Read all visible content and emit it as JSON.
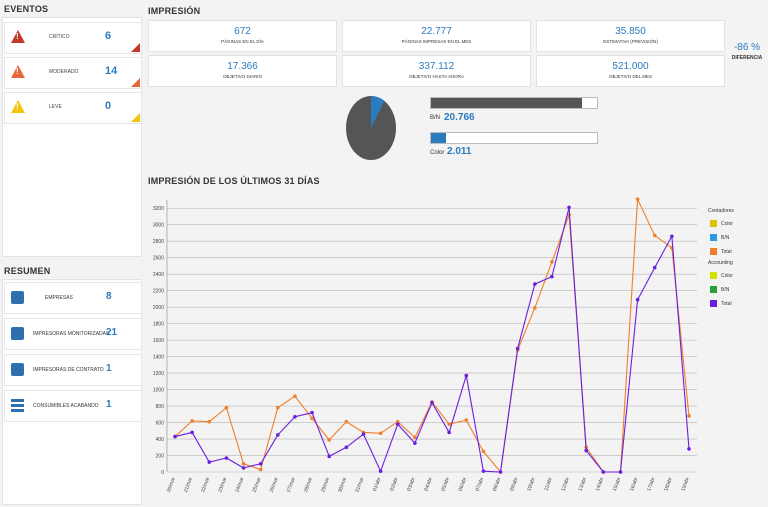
{
  "eventos": {
    "title": "EVENTOS",
    "items": [
      {
        "label": "CRÍTICO",
        "count": "6",
        "color": "#c0392b"
      },
      {
        "label": "MODERADO",
        "count": "14",
        "color": "#e8643c"
      },
      {
        "label": "LEVE",
        "count": "0",
        "color": "#f1c40f"
      }
    ]
  },
  "resumen": {
    "title": "RESUMEN",
    "items": [
      {
        "label": "EMPRESAS",
        "count": "8",
        "icon": "factory-icon"
      },
      {
        "label": "IMPRESORAS MONITORIZADAS",
        "count": "21",
        "icon": "printer-icon"
      },
      {
        "label": "IMPRESORAS DE CONTRATO",
        "count": "1",
        "icon": "contract-printer-icon"
      },
      {
        "label": "CONSUMIBLES ACABANDO",
        "count": "1",
        "icon": "stack-icon"
      }
    ]
  },
  "impresion": {
    "title": "IMPRESIÓN",
    "kpis": [
      {
        "value": "672",
        "label": "PÁGINAS EN EL DÍA"
      },
      {
        "value": "22.777",
        "label": "PÁGINAS IMPRESAS EN EL MES"
      },
      {
        "value": "35.850",
        "label": "ESTIMATIVA (PREVISIÓN)"
      },
      {
        "value": "17.366",
        "label": "OBJETIVO DIARIO"
      },
      {
        "value": "337.112",
        "label": "OBJETIVO HASTA AHORA"
      },
      {
        "value": "521.000",
        "label": "OBJETIVO DEL MES"
      }
    ],
    "diferencia": {
      "value": "-86 %",
      "label": "DIFERENCIA"
    },
    "bn": {
      "label": "B/N",
      "value": "20.766",
      "fraction": 0.91
    },
    "color": {
      "label": "Color",
      "value": "2.011",
      "fraction": 0.09
    },
    "pie_colors": {
      "bn": "#555555",
      "color": "#2b7bc0"
    }
  },
  "chart_data": {
    "type": "line",
    "title": "IMPRESIÓN DE LOS ÚLTIMOS 31 DÍAS",
    "ylim": [
      0,
      3300
    ],
    "yticks": [
      0,
      200,
      400,
      600,
      800,
      1000,
      1200,
      1400,
      1600,
      1800,
      2000,
      2200,
      2400,
      2600,
      2800,
      3000,
      3200
    ],
    "categories": [
      "20/mar",
      "21/mar",
      "22/mar",
      "23/mar",
      "24/mar",
      "25/mar",
      "26/mar",
      "27/mar",
      "28/mar",
      "29/mar",
      "30/mar",
      "31/mar",
      "01/abr",
      "02/abr",
      "03/abr",
      "04/abr",
      "05/abr",
      "06/abr",
      "07/abr",
      "08/abr",
      "09/abr",
      "10/abr",
      "11/abr",
      "12/abr",
      "13/abr",
      "14/abr",
      "15/abr",
      "16/abr",
      "17/abr",
      "18/abr",
      "19/abr"
    ],
    "series": [
      {
        "name": "Total",
        "group": "Contadores",
        "color": "#f07f2b",
        "values": [
          430,
          620,
          610,
          780,
          100,
          30,
          780,
          920,
          650,
          390,
          610,
          480,
          470,
          610,
          420,
          850,
          580,
          630,
          250,
          0,
          1480,
          1990,
          2550,
          3120,
          300,
          0,
          0,
          3310,
          2870,
          2720,
          680
        ]
      },
      {
        "name": "Total",
        "group": "Accounting",
        "color": "#6a1fe0",
        "values": [
          430,
          480,
          120,
          170,
          50,
          100,
          450,
          670,
          720,
          190,
          300,
          460,
          10,
          580,
          350,
          840,
          480,
          1170,
          10,
          0,
          1500,
          2280,
          2370,
          3210,
          260,
          0,
          0,
          2090,
          2480,
          2860,
          280
        ]
      }
    ],
    "legend": [
      {
        "group": "Contadores",
        "entries": [
          {
            "name": "Color",
            "color": "#e0c000"
          },
          {
            "name": "B/N",
            "color": "#2b9be0"
          },
          {
            "name": "Total",
            "color": "#f07f2b"
          }
        ]
      },
      {
        "group": "Accounting",
        "entries": [
          {
            "name": "Color",
            "color": "#d4e000"
          },
          {
            "name": "B/N",
            "color": "#27a03a"
          },
          {
            "name": "Total",
            "color": "#6a1fe0"
          }
        ]
      }
    ]
  }
}
